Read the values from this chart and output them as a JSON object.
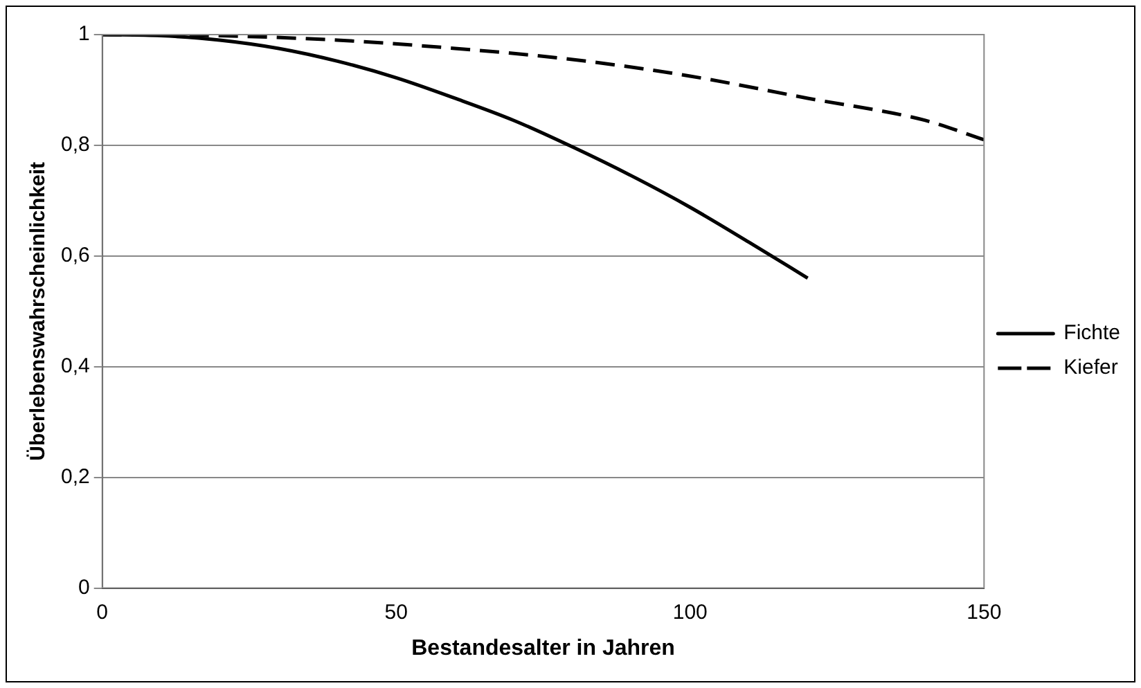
{
  "chart_data": {
    "type": "line",
    "xlabel": "Bestandesalter in Jahren",
    "ylabel": "Überlebenswahrscheinlichkeit",
    "xlim": [
      0,
      150
    ],
    "xticks": [
      0,
      50,
      100,
      150
    ],
    "ylim": [
      0,
      1
    ],
    "yticks": [
      0,
      {
        "value": 0.2,
        "label": "0,2"
      },
      {
        "value": 0.4,
        "label": "0,4"
      },
      {
        "value": 0.6,
        "label": "0,6"
      },
      {
        "value": 0.8,
        "label": "0,8"
      },
      1
    ],
    "grid": "y",
    "legend": "right",
    "marker": "none",
    "series": [
      {
        "name": "Fichte",
        "color": "#000000",
        "line_style": "solid",
        "x": [
          0,
          10,
          20,
          30,
          40,
          50,
          60,
          70,
          80,
          90,
          100,
          110,
          120
        ],
        "values": [
          1,
          0.998,
          0.99,
          0.975,
          0.952,
          0.922,
          0.885,
          0.845,
          0.797,
          0.745,
          0.688,
          0.625,
          0.56
        ]
      },
      {
        "name": "Kiefer",
        "color": "#000000",
        "line_style": "dashed",
        "x": [
          0,
          20,
          40,
          60,
          80,
          100,
          120,
          140,
          150
        ],
        "values": [
          1,
          0.998,
          0.99,
          0.975,
          0.955,
          0.925,
          0.885,
          0.845,
          0.81
        ]
      }
    ]
  }
}
